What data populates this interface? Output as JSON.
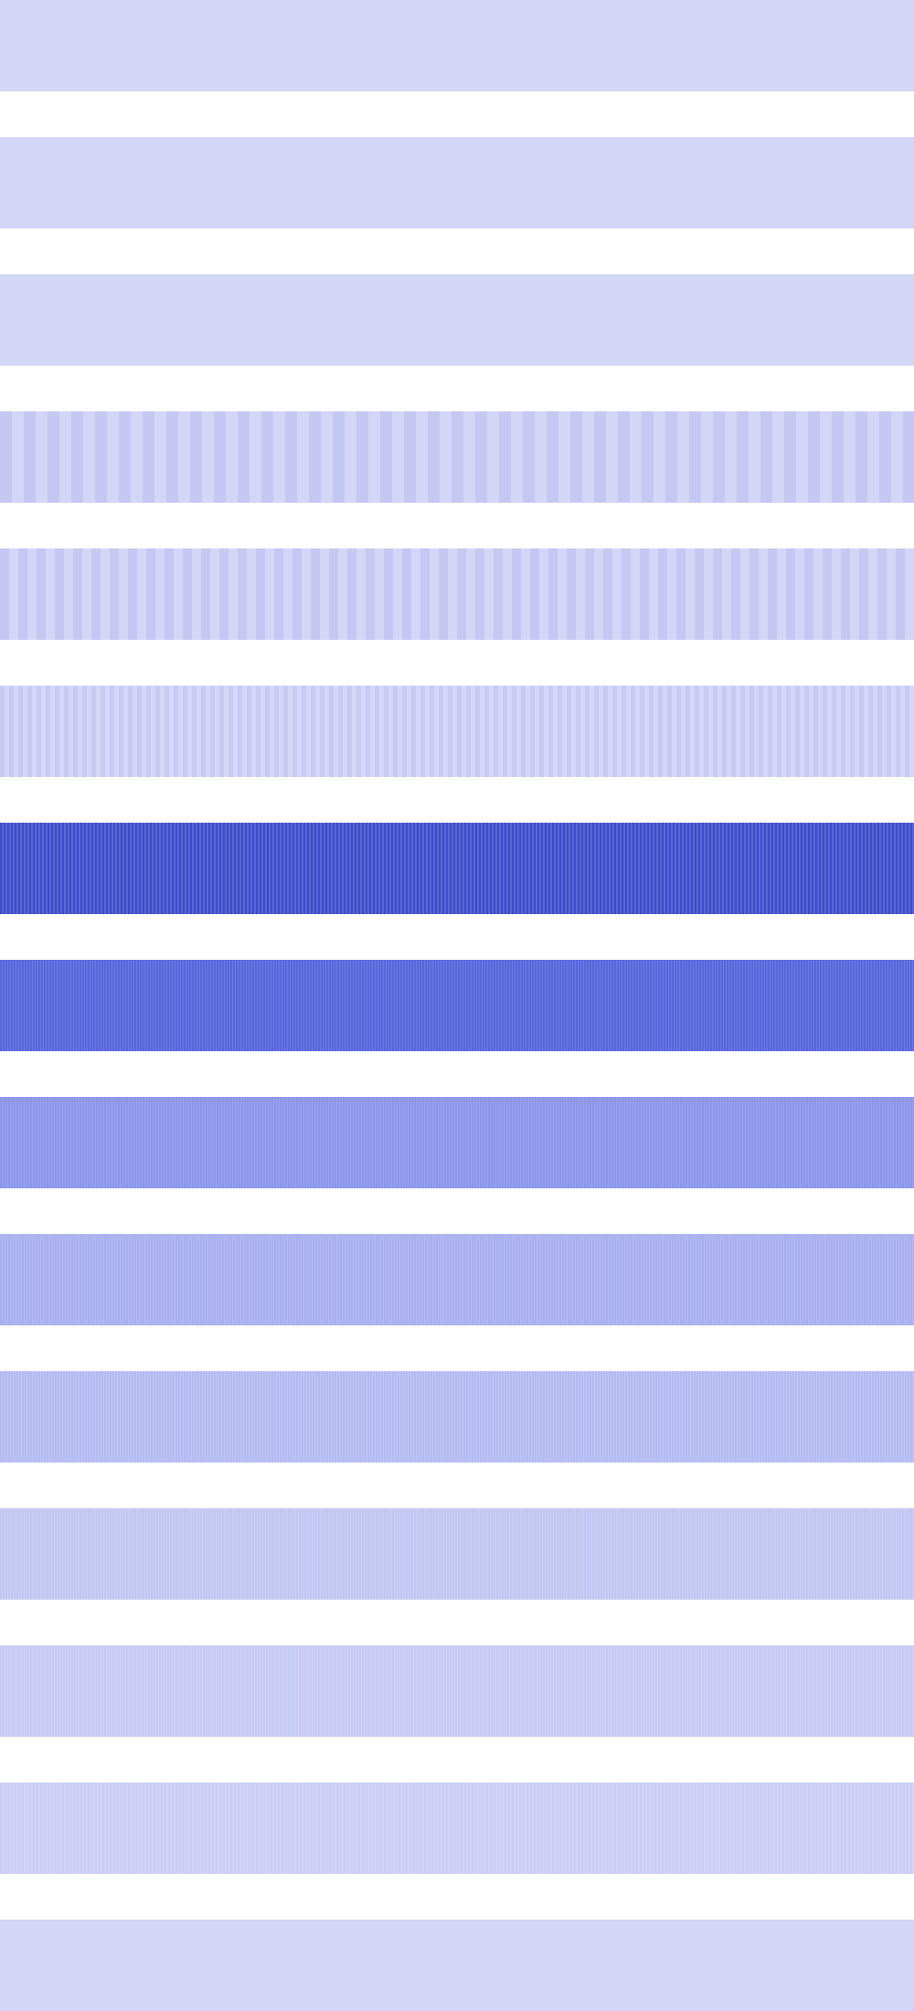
{
  "background_color": "#ffffff",
  "stripes": [
    {
      "base": "#d3d6f7",
      "line": "#d3d6f7",
      "pitch": 4,
      "line_alpha": 0.0
    },
    {
      "base": "#d3d6f7",
      "line": "#d3d6f7",
      "pitch": 4,
      "line_alpha": 0.0
    },
    {
      "base": "#d3d6f7",
      "line": "#d3d6f7",
      "pitch": 4,
      "line_alpha": 0.0
    },
    {
      "base": "#d3d6f7",
      "line": "#c4c8f2",
      "pitch": 26,
      "line_alpha": 0.9
    },
    {
      "base": "#d3d6f7",
      "line": "#c4c8f2",
      "pitch": 20,
      "line_alpha": 0.8
    },
    {
      "base": "#d4d7f7",
      "line": "#c7cbf3",
      "pitch": 10,
      "line_alpha": 0.6
    },
    {
      "base": "#5a66d6",
      "line": "#3f4bc8",
      "pitch": 4,
      "line_alpha": 0.9
    },
    {
      "base": "#6c79e3",
      "line": "#5a67db",
      "pitch": 3,
      "line_alpha": 0.8
    },
    {
      "base": "#9aa3ee",
      "line": "#8c96eb",
      "pitch": 3,
      "line_alpha": 0.7
    },
    {
      "base": "#b6bcf2",
      "line": "#a8afef",
      "pitch": 3,
      "line_alpha": 0.6
    },
    {
      "base": "#c2c8f4",
      "line": "#b3baf1",
      "pitch": 3,
      "line_alpha": 0.6
    },
    {
      "base": "#cbcff5",
      "line": "#c2c7f3",
      "pitch": 3,
      "line_alpha": 0.5
    },
    {
      "base": "#cfd2f6",
      "line": "#c6caf4",
      "pitch": 3,
      "line_alpha": 0.4
    },
    {
      "base": "#d1d4f6",
      "line": "#cacef4",
      "pitch": 4,
      "line_alpha": 0.3
    },
    {
      "base": "#d3d6f7",
      "line": "#d3d6f7",
      "pitch": 4,
      "line_alpha": 0.0
    }
  ]
}
